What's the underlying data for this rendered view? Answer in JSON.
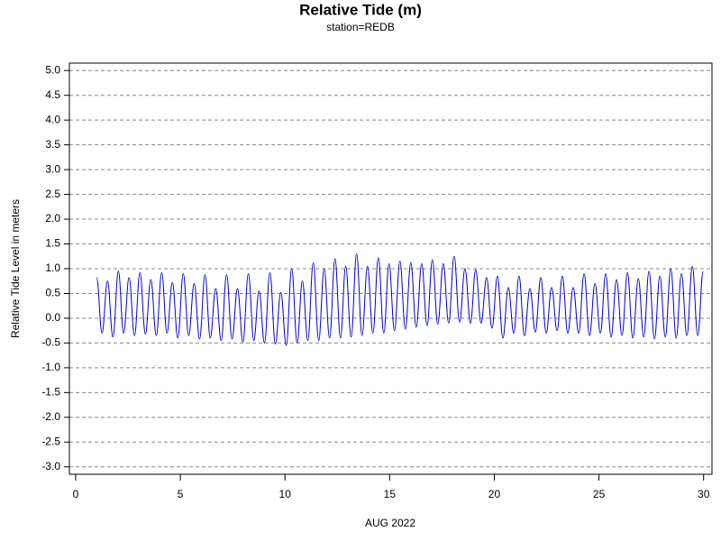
{
  "chart_data": {
    "type": "line",
    "title": "Relative Tide (m)",
    "subtitle": "station=REDB",
    "x_label": "AUG 2022",
    "y_label": "Relative Tide Level in meters",
    "xlim": [
      -0.3,
      30.4
    ],
    "xticks": [
      0,
      5,
      10,
      15,
      20,
      25,
      30
    ],
    "ylim": [
      -3.15,
      5.15
    ],
    "yticks": [
      {
        "value": 5,
        "label": "5.0"
      },
      {
        "value": 4.5,
        "label": "4.5"
      },
      {
        "value": 4,
        "label": "4.0"
      },
      {
        "value": 3.5,
        "label": "3.5"
      },
      {
        "value": 3,
        "label": "3.0"
      },
      {
        "value": 2.5,
        "label": "2.5"
      },
      {
        "value": 2,
        "label": "2.0"
      },
      {
        "value": 1.5,
        "label": "1.5"
      },
      {
        "value": 1,
        "label": "1.0"
      },
      {
        "value": 0.5,
        "label": "0.5"
      },
      {
        "value": 0,
        "label": "0.0"
      },
      {
        "value": -0.5,
        "label": "-0.5"
      },
      {
        "value": -1,
        "label": "-1.0"
      },
      {
        "value": -1.5,
        "label": "-1.5"
      },
      {
        "value": -2,
        "label": "-2.0"
      },
      {
        "value": -2.5,
        "label": "-2.5"
      },
      {
        "value": -3,
        "label": "-3.0"
      }
    ],
    "grid": true,
    "color": "#0000cc",
    "x": [
      1.0,
      1.26,
      1.52,
      1.78,
      2.04,
      2.29,
      2.55,
      2.81,
      3.07,
      3.33,
      3.59,
      3.85,
      4.11,
      4.36,
      4.62,
      4.88,
      5.14,
      5.4,
      5.66,
      5.92,
      6.18,
      6.43,
      6.69,
      6.95,
      7.21,
      7.47,
      7.73,
      7.99,
      8.25,
      8.51,
      8.76,
      9.02,
      9.28,
      9.54,
      9.8,
      10.06,
      10.32,
      10.58,
      10.83,
      11.09,
      11.35,
      11.61,
      11.87,
      12.13,
      12.39,
      12.65,
      12.9,
      13.16,
      13.42,
      13.68,
      13.94,
      14.2,
      14.46,
      14.72,
      14.97,
      15.23,
      15.49,
      15.75,
      16.01,
      16.27,
      16.53,
      16.79,
      17.04,
      17.3,
      17.56,
      17.82,
      18.08,
      18.34,
      18.6,
      18.86,
      19.11,
      19.37,
      19.63,
      19.89,
      20.15,
      20.41,
      20.67,
      20.93,
      21.18,
      21.44,
      21.7,
      21.96,
      22.22,
      22.48,
      22.74,
      23.0,
      23.25,
      23.51,
      23.77,
      24.03,
      24.29,
      24.55,
      24.81,
      25.07,
      25.32,
      25.58,
      25.84,
      26.1,
      26.36,
      26.62,
      26.88,
      27.14,
      27.39,
      27.65,
      27.91,
      28.17,
      28.43,
      28.69,
      28.94,
      29.2,
      29.46,
      29.72,
      29.98
    ],
    "values": [
      0.82,
      -0.3,
      0.75,
      -0.38,
      0.95,
      -0.3,
      0.82,
      -0.35,
      0.92,
      -0.32,
      0.78,
      -0.35,
      0.92,
      -0.3,
      0.72,
      -0.4,
      0.9,
      -0.35,
      0.7,
      -0.42,
      0.88,
      -0.4,
      0.6,
      -0.45,
      0.88,
      -0.42,
      0.6,
      -0.48,
      0.9,
      -0.45,
      0.55,
      -0.5,
      0.92,
      -0.52,
      0.52,
      -0.55,
      1.0,
      -0.5,
      0.75,
      -0.45,
      1.12,
      -0.45,
      1.0,
      -0.4,
      1.2,
      -0.4,
      1.05,
      -0.38,
      1.3,
      -0.35,
      1.05,
      -0.3,
      1.22,
      -0.3,
      1.1,
      -0.25,
      1.15,
      -0.22,
      1.12,
      -0.18,
      1.1,
      -0.15,
      1.18,
      -0.12,
      1.1,
      -0.1,
      1.25,
      -0.08,
      1.0,
      -0.1,
      0.98,
      -0.1,
      0.82,
      -0.2,
      0.85,
      -0.4,
      0.62,
      -0.3,
      0.85,
      -0.35,
      0.6,
      -0.28,
      0.82,
      -0.3,
      0.62,
      -0.25,
      0.85,
      -0.3,
      0.62,
      -0.3,
      0.9,
      -0.35,
      0.7,
      -0.3,
      0.9,
      -0.38,
      0.78,
      -0.35,
      0.92,
      -0.4,
      0.8,
      -0.38,
      0.95,
      -0.42,
      0.85,
      -0.38,
      1.0,
      -0.4,
      0.9,
      -0.35,
      1.05,
      -0.35,
      0.95
    ]
  }
}
